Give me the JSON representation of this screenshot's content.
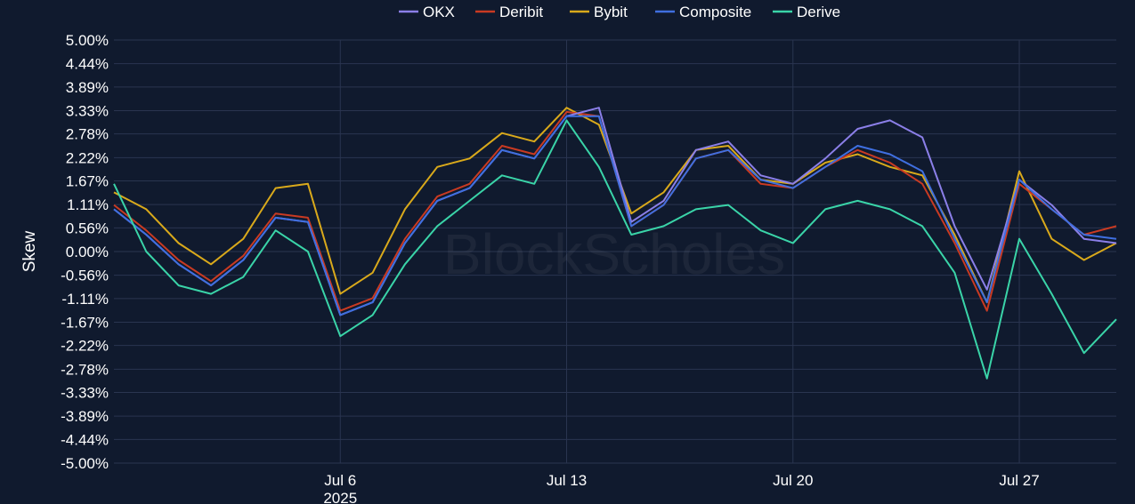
{
  "chart_data": {
    "type": "line",
    "ylabel": "Skew",
    "watermark": "BlockScholes",
    "ylim": [
      -5.0,
      5.0
    ],
    "y_ticks": [
      "5.00%",
      "4.44%",
      "3.89%",
      "3.33%",
      "2.78%",
      "2.22%",
      "1.67%",
      "1.11%",
      "0.56%",
      "0.00%",
      "-0.56%",
      "-1.11%",
      "-1.67%",
      "-2.22%",
      "-2.78%",
      "-3.33%",
      "-3.89%",
      "-4.44%",
      "-5.00%"
    ],
    "y_tick_values": [
      5.0,
      4.44,
      3.89,
      3.33,
      2.78,
      2.22,
      1.67,
      1.11,
      0.56,
      0.0,
      -0.56,
      -1.11,
      -1.67,
      -2.22,
      -2.78,
      -3.33,
      -3.89,
      -4.44,
      -5.0
    ],
    "x_range": [
      "2025-06-29",
      "2025-07-30"
    ],
    "x_ticks": [
      {
        "date": "2025-07-06",
        "label": "Jul 6",
        "sublabel": "2025"
      },
      {
        "date": "2025-07-13",
        "label": "Jul 13",
        "sublabel": ""
      },
      {
        "date": "2025-07-20",
        "label": "Jul 20",
        "sublabel": ""
      },
      {
        "date": "2025-07-27",
        "label": "Jul 27",
        "sublabel": ""
      }
    ],
    "grid": true,
    "legend_position": "top-center",
    "series": [
      {
        "name": "OKX",
        "color": "#8b7fe8",
        "x": [
          "2025-06-29",
          "2025-06-30",
          "2025-07-01",
          "2025-07-02",
          "2025-07-03",
          "2025-07-04",
          "2025-07-05",
          "2025-07-06",
          "2025-07-07",
          "2025-07-08",
          "2025-07-09",
          "2025-07-10",
          "2025-07-11",
          "2025-07-12",
          "2025-07-13",
          "2025-07-14",
          "2025-07-15",
          "2025-07-16",
          "2025-07-17",
          "2025-07-18",
          "2025-07-19",
          "2025-07-20",
          "2025-07-21",
          "2025-07-22",
          "2025-07-23",
          "2025-07-24",
          "2025-07-25",
          "2025-07-26",
          "2025-07-27",
          "2025-07-28",
          "2025-07-29",
          "2025-07-30"
        ],
        "values": [
          1.0,
          0.4,
          -0.3,
          -0.8,
          -0.2,
          0.8,
          0.7,
          -1.5,
          -1.2,
          0.2,
          1.2,
          1.5,
          2.4,
          2.2,
          3.2,
          3.4,
          0.7,
          1.2,
          2.4,
          2.6,
          1.8,
          1.6,
          2.2,
          2.9,
          3.1,
          2.7,
          0.6,
          -0.9,
          1.7,
          1.1,
          0.3,
          0.2
        ]
      },
      {
        "name": "Deribit",
        "color": "#c93a22",
        "x": [
          "2025-06-29",
          "2025-06-30",
          "2025-07-01",
          "2025-07-02",
          "2025-07-03",
          "2025-07-04",
          "2025-07-05",
          "2025-07-06",
          "2025-07-07",
          "2025-07-08",
          "2025-07-09",
          "2025-07-10",
          "2025-07-11",
          "2025-07-12",
          "2025-07-13",
          "2025-07-14",
          "2025-07-15",
          "2025-07-16",
          "2025-07-17",
          "2025-07-18",
          "2025-07-19",
          "2025-07-20",
          "2025-07-21",
          "2025-07-22",
          "2025-07-23",
          "2025-07-24",
          "2025-07-25",
          "2025-07-26",
          "2025-07-27",
          "2025-07-28",
          "2025-07-29",
          "2025-07-30"
        ],
        "values": [
          1.1,
          0.5,
          -0.2,
          -0.7,
          -0.1,
          0.9,
          0.8,
          -1.4,
          -1.1,
          0.3,
          1.3,
          1.6,
          2.5,
          2.3,
          3.3,
          3.2,
          0.6,
          1.1,
          2.2,
          2.4,
          1.6,
          1.5,
          2.0,
          2.4,
          2.1,
          1.6,
          0.2,
          -1.4,
          1.6,
          1.0,
          0.4,
          0.6
        ]
      },
      {
        "name": "Bybit",
        "color": "#d9a91b",
        "x": [
          "2025-06-29",
          "2025-06-30",
          "2025-07-01",
          "2025-07-02",
          "2025-07-03",
          "2025-07-04",
          "2025-07-05",
          "2025-07-06",
          "2025-07-07",
          "2025-07-08",
          "2025-07-09",
          "2025-07-10",
          "2025-07-11",
          "2025-07-12",
          "2025-07-13",
          "2025-07-14",
          "2025-07-15",
          "2025-07-16",
          "2025-07-17",
          "2025-07-18",
          "2025-07-19",
          "2025-07-20",
          "2025-07-21",
          "2025-07-22",
          "2025-07-23",
          "2025-07-24",
          "2025-07-25",
          "2025-07-26",
          "2025-07-27",
          "2025-07-28",
          "2025-07-29",
          "2025-07-30"
        ],
        "values": [
          1.4,
          1.0,
          0.2,
          -0.3,
          0.3,
          1.5,
          1.6,
          -1.0,
          -0.5,
          1.0,
          2.0,
          2.2,
          2.8,
          2.6,
          3.4,
          3.0,
          0.9,
          1.4,
          2.4,
          2.5,
          1.7,
          1.6,
          2.1,
          2.3,
          2.0,
          1.8,
          0.4,
          -1.2,
          1.9,
          0.3,
          -0.2,
          0.2
        ]
      },
      {
        "name": "Composite",
        "color": "#3f6fe0",
        "x": [
          "2025-06-29",
          "2025-06-30",
          "2025-07-01",
          "2025-07-02",
          "2025-07-03",
          "2025-07-04",
          "2025-07-05",
          "2025-07-06",
          "2025-07-07",
          "2025-07-08",
          "2025-07-09",
          "2025-07-10",
          "2025-07-11",
          "2025-07-12",
          "2025-07-13",
          "2025-07-14",
          "2025-07-15",
          "2025-07-16",
          "2025-07-17",
          "2025-07-18",
          "2025-07-19",
          "2025-07-20",
          "2025-07-21",
          "2025-07-22",
          "2025-07-23",
          "2025-07-24",
          "2025-07-25",
          "2025-07-26",
          "2025-07-27",
          "2025-07-28",
          "2025-07-29",
          "2025-07-30"
        ],
        "values": [
          1.0,
          0.4,
          -0.3,
          -0.8,
          -0.2,
          0.8,
          0.7,
          -1.5,
          -1.2,
          0.2,
          1.2,
          1.5,
          2.4,
          2.2,
          3.2,
          3.2,
          0.6,
          1.1,
          2.2,
          2.4,
          1.7,
          1.5,
          2.0,
          2.5,
          2.3,
          1.9,
          0.3,
          -1.2,
          1.7,
          1.0,
          0.4,
          0.3
        ]
      },
      {
        "name": "Derive",
        "color": "#3ad4a8",
        "x": [
          "2025-06-29",
          "2025-06-30",
          "2025-07-01",
          "2025-07-02",
          "2025-07-03",
          "2025-07-04",
          "2025-07-05",
          "2025-07-06",
          "2025-07-07",
          "2025-07-08",
          "2025-07-09",
          "2025-07-10",
          "2025-07-11",
          "2025-07-12",
          "2025-07-13",
          "2025-07-14",
          "2025-07-15",
          "2025-07-16",
          "2025-07-17",
          "2025-07-18",
          "2025-07-19",
          "2025-07-20",
          "2025-07-21",
          "2025-07-22",
          "2025-07-23",
          "2025-07-24",
          "2025-07-25",
          "2025-07-26",
          "2025-07-27",
          "2025-07-28",
          "2025-07-29",
          "2025-07-30"
        ],
        "values": [
          1.6,
          0.0,
          -0.8,
          -1.0,
          -0.6,
          0.5,
          0.0,
          -2.0,
          -1.5,
          -0.3,
          0.6,
          1.2,
          1.8,
          1.6,
          3.1,
          2.0,
          0.4,
          0.6,
          1.0,
          1.1,
          0.5,
          0.2,
          1.0,
          1.2,
          1.0,
          0.6,
          -0.5,
          -3.0,
          0.3,
          -1.0,
          -2.4,
          -1.6
        ]
      }
    ]
  }
}
